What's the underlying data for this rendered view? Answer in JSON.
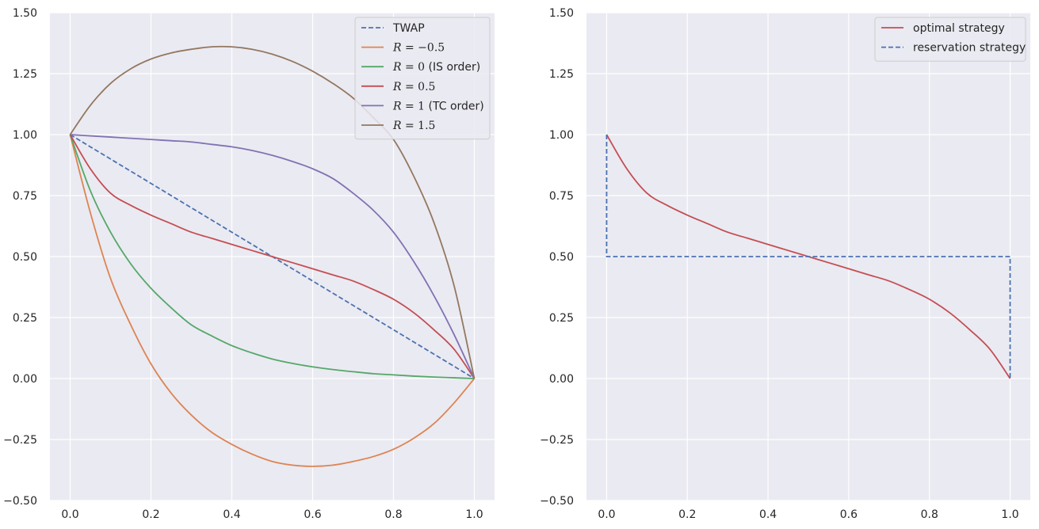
{
  "chart_data": [
    {
      "type": "line",
      "title": "",
      "xlabel": "",
      "ylabel": "",
      "xlim": [
        -0.05,
        1.05
      ],
      "ylim": [
        -0.5,
        1.5
      ],
      "x_ticks": [
        "0.0",
        "0.2",
        "0.4",
        "0.6",
        "0.8",
        "1.0"
      ],
      "y_ticks": [
        "−0.50",
        "−0.25",
        "0.00",
        "0.25",
        "0.50",
        "0.75",
        "1.00",
        "1.25",
        "1.50"
      ],
      "grid": true,
      "legend_position": "top-right",
      "series": [
        {
          "name": "TWAP",
          "style": "dashed",
          "color": "#4c72b0",
          "x": [
            0.0,
            1.0
          ],
          "y": [
            1.0,
            0.0
          ]
        },
        {
          "name": "R = −0.5",
          "style": "solid",
          "color": "#dd8452",
          "x": [
            0.0,
            0.05,
            0.1,
            0.15,
            0.2,
            0.25,
            0.3,
            0.35,
            0.4,
            0.45,
            0.5,
            0.55,
            0.6,
            0.65,
            0.7,
            0.75,
            0.8,
            0.85,
            0.9,
            0.95,
            1.0
          ],
          "y": [
            1.0,
            0.68,
            0.41,
            0.22,
            0.06,
            -0.06,
            -0.15,
            -0.22,
            -0.27,
            -0.31,
            -0.34,
            -0.355,
            -0.36,
            -0.355,
            -0.34,
            -0.32,
            -0.29,
            -0.245,
            -0.185,
            -0.1,
            0.0
          ]
        },
        {
          "name": "R = 0 (IS order)",
          "style": "solid",
          "color": "#55a868",
          "x": [
            0.0,
            0.05,
            0.1,
            0.15,
            0.2,
            0.25,
            0.3,
            0.35,
            0.4,
            0.45,
            0.5,
            0.55,
            0.6,
            0.65,
            0.7,
            0.75,
            0.8,
            0.85,
            0.9,
            0.95,
            1.0
          ],
          "y": [
            1.0,
            0.77,
            0.6,
            0.47,
            0.37,
            0.29,
            0.22,
            0.175,
            0.135,
            0.105,
            0.08,
            0.062,
            0.048,
            0.037,
            0.028,
            0.02,
            0.015,
            0.01,
            0.006,
            0.003,
            0.0
          ]
        },
        {
          "name": "R = 0.5",
          "style": "solid",
          "color": "#c44e52",
          "x": [
            0.0,
            0.05,
            0.1,
            0.15,
            0.2,
            0.25,
            0.3,
            0.35,
            0.4,
            0.45,
            0.5,
            0.55,
            0.6,
            0.65,
            0.7,
            0.75,
            0.8,
            0.85,
            0.9,
            0.95,
            1.0
          ],
          "y": [
            1.0,
            0.86,
            0.76,
            0.71,
            0.67,
            0.635,
            0.6,
            0.575,
            0.55,
            0.525,
            0.5,
            0.475,
            0.45,
            0.425,
            0.4,
            0.365,
            0.325,
            0.27,
            0.2,
            0.12,
            0.0
          ]
        },
        {
          "name": "R = 1 (TC order)",
          "style": "solid",
          "color": "#8172b3",
          "x": [
            0.0,
            0.05,
            0.1,
            0.15,
            0.2,
            0.25,
            0.3,
            0.35,
            0.4,
            0.45,
            0.5,
            0.55,
            0.6,
            0.65,
            0.7,
            0.75,
            0.8,
            0.85,
            0.9,
            0.95,
            1.0
          ],
          "y": [
            1.0,
            0.995,
            0.99,
            0.985,
            0.98,
            0.975,
            0.97,
            0.96,
            0.95,
            0.935,
            0.915,
            0.89,
            0.86,
            0.82,
            0.76,
            0.69,
            0.6,
            0.48,
            0.34,
            0.18,
            0.0
          ]
        },
        {
          "name": "R = 1.5",
          "style": "solid",
          "color": "#937860",
          "x": [
            0.0,
            0.05,
            0.1,
            0.15,
            0.2,
            0.25,
            0.3,
            0.35,
            0.4,
            0.45,
            0.5,
            0.55,
            0.6,
            0.65,
            0.7,
            0.75,
            0.8,
            0.85,
            0.9,
            0.95,
            1.0
          ],
          "y": [
            1.0,
            1.12,
            1.21,
            1.27,
            1.31,
            1.335,
            1.35,
            1.36,
            1.36,
            1.35,
            1.33,
            1.3,
            1.26,
            1.21,
            1.15,
            1.07,
            0.98,
            0.83,
            0.64,
            0.38,
            0.0
          ]
        }
      ]
    },
    {
      "type": "line",
      "title": "",
      "xlabel": "",
      "ylabel": "",
      "xlim": [
        -0.05,
        1.05
      ],
      "ylim": [
        -0.5,
        1.5
      ],
      "x_ticks": [
        "0.0",
        "0.2",
        "0.4",
        "0.6",
        "0.8",
        "1.0"
      ],
      "y_ticks": [
        "−0.50",
        "−0.25",
        "0.00",
        "0.25",
        "0.50",
        "0.75",
        "1.00",
        "1.25",
        "1.50"
      ],
      "grid": true,
      "legend_position": "top-right",
      "series": [
        {
          "name": "optimal strategy",
          "style": "solid",
          "color": "#c44e52",
          "x": [
            0.0,
            0.05,
            0.1,
            0.15,
            0.2,
            0.25,
            0.3,
            0.35,
            0.4,
            0.45,
            0.5,
            0.55,
            0.6,
            0.65,
            0.7,
            0.75,
            0.8,
            0.85,
            0.9,
            0.95,
            1.0
          ],
          "y": [
            1.0,
            0.86,
            0.76,
            0.71,
            0.67,
            0.635,
            0.6,
            0.575,
            0.55,
            0.525,
            0.5,
            0.475,
            0.45,
            0.425,
            0.4,
            0.365,
            0.325,
            0.27,
            0.2,
            0.12,
            0.0
          ]
        },
        {
          "name": "reservation strategy",
          "style": "dashed",
          "color": "#4c72b0",
          "x": [
            0.0,
            0.0,
            1.0,
            1.0
          ],
          "y": [
            1.0,
            0.5,
            0.5,
            0.0
          ]
        }
      ]
    }
  ]
}
